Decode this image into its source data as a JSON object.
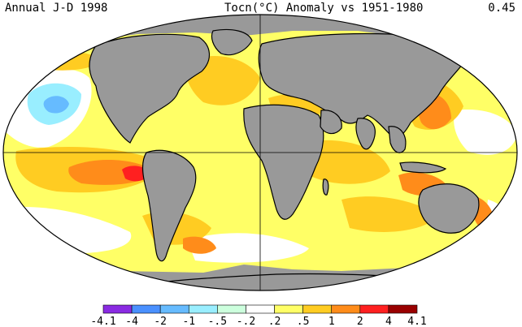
{
  "header": {
    "left": "Annual J-D 1998",
    "middle": "Tocn(°C) Anomaly vs 1951-1980",
    "right": "0.45"
  },
  "colors": {
    "land": "#999999",
    "white": "#ffffff",
    "yellow": "#ffff66",
    "gold": "#ffcc22",
    "orange": "#ff8c1a",
    "red": "#ff2020",
    "darkred": "#990000",
    "lightblue": "#99eeff",
    "blue": "#66bbff",
    "missing": "#999999"
  },
  "legend": {
    "labels": [
      "-4.1",
      "-4",
      "-2",
      "-1",
      "-.5",
      "-.2",
      ".2",
      ".5",
      "1",
      "2",
      "4",
      "4.1"
    ],
    "colors": [
      "#8a2be2",
      "#4a90ff",
      "#66bbff",
      "#99eeff",
      "#ccffdd",
      "#ffffff",
      "#ffff66",
      "#ffcc22",
      "#ff8c1a",
      "#ff2020",
      "#990000"
    ]
  }
}
